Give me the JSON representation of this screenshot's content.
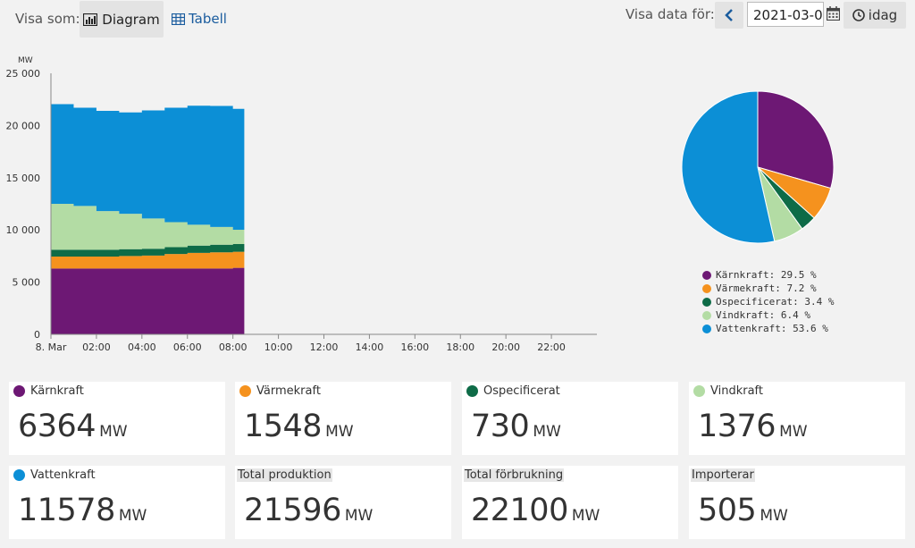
{
  "toolbar": {
    "view_label": "Visa som:",
    "diagram_label": "Diagram",
    "table_label": "Tabell",
    "date_label": "Visa data för:",
    "date_value": "2021-03-0",
    "today_label": "idag"
  },
  "colors": {
    "karnkraft": "#6d1874",
    "varmekraft": "#f5921e",
    "ospecificerat": "#0e6b47",
    "vindkraft": "#b3dca4",
    "vattenkraft": "#0c8fd6"
  },
  "chart_data": [
    {
      "type": "area",
      "stacked": true,
      "ylabel": "MW",
      "ylim": [
        0,
        25000
      ],
      "yticks": [
        0,
        5000,
        10000,
        15000,
        20000,
        25000
      ],
      "ytick_labels": [
        "0",
        "5 000",
        "10 000",
        "15 000",
        "20 000",
        "25 000"
      ],
      "xlim": [
        0,
        24
      ],
      "xticks": [
        0,
        2,
        4,
        6,
        8,
        10,
        12,
        14,
        16,
        18,
        20,
        22
      ],
      "xtick_labels": [
        "8. Mar",
        "02:00",
        "04:00",
        "06:00",
        "08:00",
        "10:00",
        "12:00",
        "14:00",
        "16:00",
        "18:00",
        "20:00",
        "22:00"
      ],
      "grid": false,
      "x": [
        0,
        1,
        2,
        3,
        4,
        5,
        6,
        7,
        8
      ],
      "x_end": 8.5,
      "series": [
        {
          "name": "Kärnkraft",
          "values": [
            6300,
            6300,
            6300,
            6300,
            6300,
            6300,
            6300,
            6300,
            6364
          ]
        },
        {
          "name": "Värmekraft",
          "values": [
            1150,
            1150,
            1150,
            1200,
            1250,
            1400,
            1500,
            1550,
            1548
          ]
        },
        {
          "name": "Ospecificerat",
          "values": [
            650,
            650,
            650,
            650,
            650,
            650,
            700,
            730,
            730
          ]
        },
        {
          "name": "Vindkraft",
          "values": [
            4400,
            4200,
            3700,
            3400,
            2900,
            2400,
            2000,
            1700,
            1376
          ]
        },
        {
          "name": "Vattenkraft",
          "values": [
            9550,
            9400,
            9600,
            9700,
            10350,
            10950,
            11400,
            11600,
            11578
          ]
        }
      ]
    },
    {
      "type": "pie",
      "labels": [
        "Kärnkraft",
        "Värmekraft",
        "Ospecificerat",
        "Vindkraft",
        "Vattenkraft"
      ],
      "values": [
        29.5,
        7.2,
        3.4,
        6.4,
        53.6
      ],
      "legend_labels": [
        "Kärnkraft: 29.5 %",
        "Värmekraft: 7.2 %",
        "Ospecificerat: 3.4 %",
        "Vindkraft: 6.4 %",
        "Vattenkraft: 53.6 %"
      ],
      "legend_position": "bottom"
    }
  ],
  "cards": [
    {
      "label": "Kärnkraft",
      "value": "6364",
      "unit": "MW",
      "color_key": "karnkraft"
    },
    {
      "label": "Värmekraft",
      "value": "1548",
      "unit": "MW",
      "color_key": "varmekraft"
    },
    {
      "label": "Ospecificerat",
      "value": "730",
      "unit": "MW",
      "color_key": "ospecificerat"
    },
    {
      "label": "Vindkraft",
      "value": "1376",
      "unit": "MW",
      "color_key": "vindkraft"
    },
    {
      "label": "Vattenkraft",
      "value": "11578",
      "unit": "MW",
      "color_key": "vattenkraft"
    },
    {
      "label": "Total produktion",
      "value": "21596",
      "unit": "MW"
    },
    {
      "label": "Total förbrukning",
      "value": "22100",
      "unit": "MW"
    },
    {
      "label": "Importerar",
      "value": "505",
      "unit": "MW"
    }
  ]
}
